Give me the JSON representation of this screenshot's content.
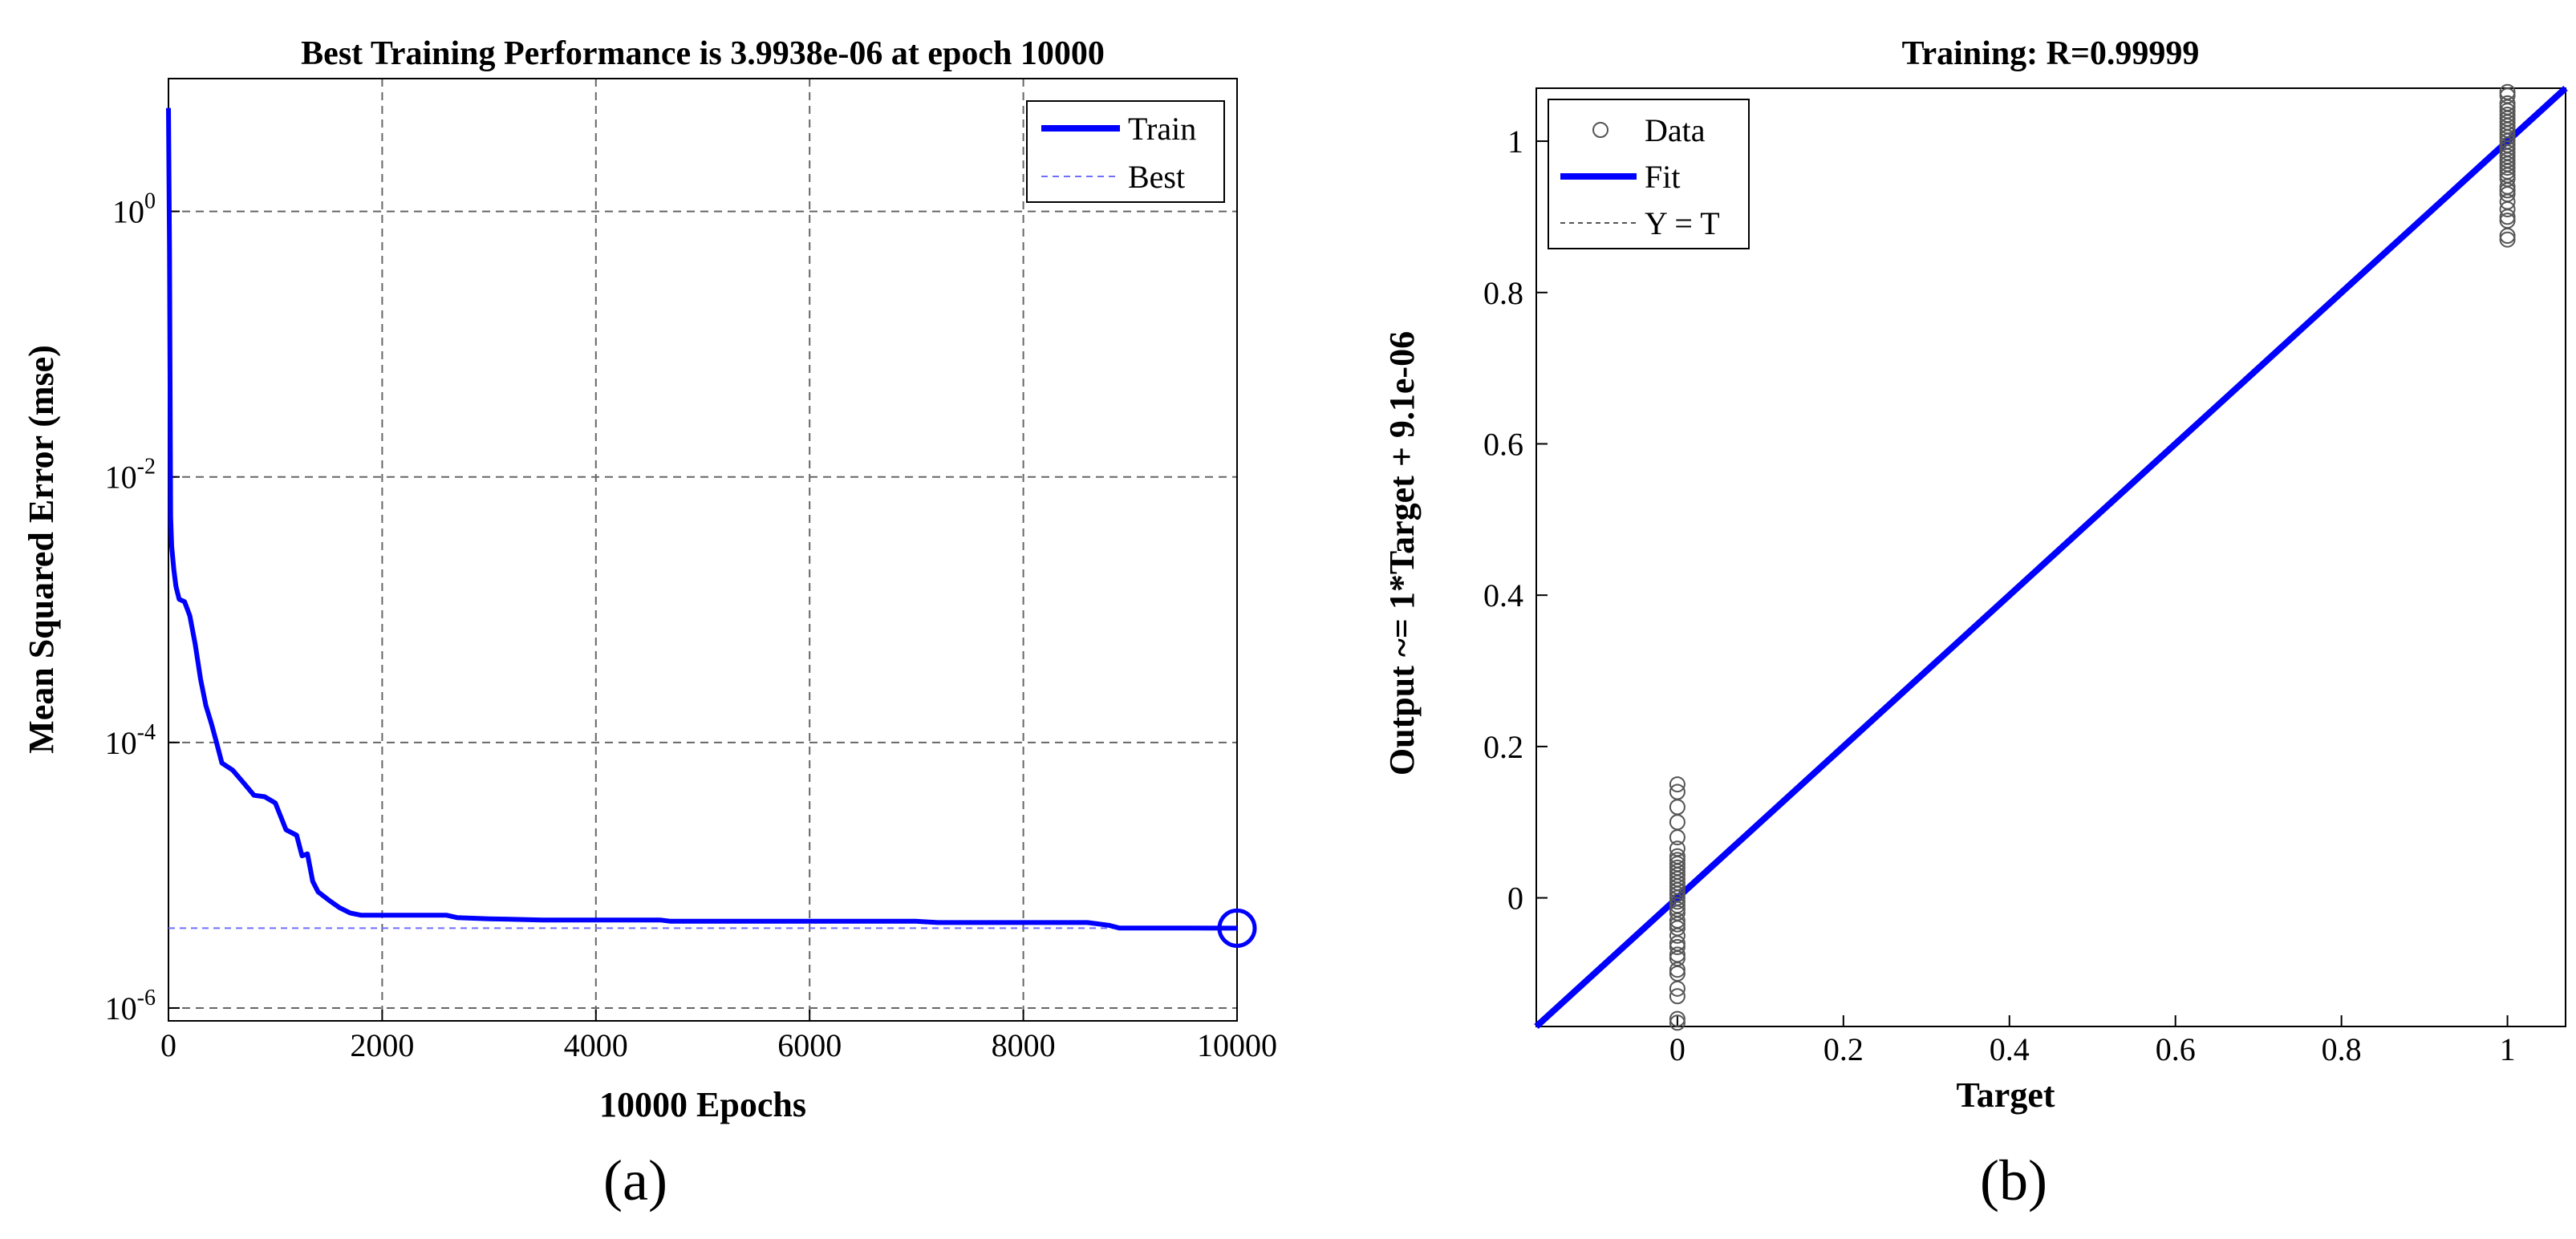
{
  "chart_data": [
    {
      "type": "line",
      "title": "Best Training Performance is 3.9938e-06 at epoch 10000",
      "xlabel": "10000 Epochs",
      "ylabel": "Mean Squared Error  (mse)",
      "xlim": [
        0,
        10000
      ],
      "ylim": [
        8e-07,
        10
      ],
      "yscale": "log",
      "grid": true,
      "legend_placement": "top-right",
      "x_ticks": [
        "0",
        "2000",
        "4000",
        "6000",
        "8000",
        "10000"
      ],
      "y_ticks": [
        {
          "base": "10",
          "exp": "0",
          "value": 1
        },
        {
          "base": "10",
          "exp": "-2",
          "value": 0.01
        },
        {
          "base": "10",
          "exp": "-4",
          "value": 0.0001
        },
        {
          "base": "10",
          "exp": "-6",
          "value": 1e-06
        }
      ],
      "legend": [
        "Train",
        "Best"
      ],
      "colors": {
        "train": "#0000ff",
        "best": "#6f6fff"
      },
      "series": [
        {
          "name": "Train",
          "x": [
            0,
            10,
            20,
            30,
            50,
            70,
            100,
            150,
            200,
            250,
            300,
            350,
            400,
            450,
            500,
            600,
            700,
            800,
            900,
            1000,
            1100,
            1200,
            1250,
            1300,
            1350,
            1400,
            1500,
            1600,
            1700,
            1800,
            2000,
            2600,
            2700,
            3000,
            3500,
            4000,
            4600,
            4700,
            5000,
            6000,
            7000,
            7200,
            8000,
            8600,
            8800,
            8900,
            9200,
            9600,
            10000
          ],
          "y": [
            6.0,
            0.5,
            0.005,
            0.003,
            0.002,
            0.0015,
            0.0012,
            0.00115,
            0.0009,
            0.00055,
            0.0003,
            0.00019,
            0.00014,
            0.0001,
            7e-05,
            6.2e-05,
            5e-05,
            4e-05,
            3.9e-05,
            3.5e-05,
            2.2e-05,
            2e-05,
            1.4e-05,
            1.45e-05,
            9e-06,
            7.5e-06,
            6.5e-06,
            5.7e-06,
            5.2e-06,
            5e-06,
            5e-06,
            5e-06,
            4.8e-06,
            4.7e-06,
            4.6e-06,
            4.6e-06,
            4.6e-06,
            4.5e-06,
            4.5e-06,
            4.5e-06,
            4.5e-06,
            4.4e-06,
            4.4e-06,
            4.4e-06,
            4.2e-06,
            4e-06,
            4e-06,
            4e-06,
            3.9938e-06
          ]
        },
        {
          "name": "Best",
          "x": [
            0,
            10000
          ],
          "y": [
            3.9938e-06,
            3.9938e-06
          ]
        }
      ],
      "best_point": {
        "x": 10000,
        "y": 3.9938e-06
      }
    },
    {
      "type": "scatter",
      "title": "Training: R=0.99999",
      "xlabel": "Target",
      "ylabel": "Output ~= 1*Target + 9.1e-06",
      "xlim": [
        -0.17,
        1.07
      ],
      "ylim": [
        -0.17,
        1.07
      ],
      "grid": false,
      "legend_placement": "top-left",
      "x_ticks": [
        "0",
        "0.2",
        "0.4",
        "0.6",
        "0.8",
        "1"
      ],
      "y_ticks": [
        "0",
        "0.2",
        "0.4",
        "0.6",
        "0.8",
        "1"
      ],
      "legend": [
        "Data",
        "Fit",
        "Y = T"
      ],
      "colors": {
        "data": "#555555",
        "fit": "#0000ff",
        "yt": "#555555"
      },
      "fit": {
        "slope": 1,
        "intercept": 9.1e-06
      },
      "series": [
        {
          "name": "Data",
          "x": [
            0,
            0,
            0,
            0,
            0,
            0,
            0,
            0,
            0,
            0,
            0,
            0,
            0,
            0,
            0,
            0,
            0,
            0,
            0,
            0,
            0,
            0,
            0,
            0,
            0,
            0,
            0,
            0,
            0,
            0,
            0,
            0,
            0,
            0,
            0,
            0,
            1,
            1,
            1,
            1,
            1,
            1,
            1,
            1,
            1,
            1,
            1,
            1,
            1,
            1,
            1,
            1,
            1,
            1,
            1,
            1,
            1,
            1,
            1,
            1,
            1,
            1,
            1,
            1,
            1,
            1,
            1,
            1
          ],
          "y": [
            0.15,
            0.14,
            0.12,
            0.1,
            0.08,
            0.065,
            0.055,
            0.05,
            0.045,
            0.04,
            0.035,
            0.03,
            0.025,
            0.02,
            0.015,
            0.01,
            0.005,
            0.0,
            -0.005,
            -0.01,
            -0.015,
            -0.02,
            -0.03,
            -0.035,
            -0.04,
            -0.05,
            -0.06,
            -0.065,
            -0.075,
            -0.08,
            -0.095,
            -0.1,
            -0.12,
            -0.13,
            -0.16,
            -0.165,
            1.065,
            1.06,
            1.05,
            1.045,
            1.04,
            1.035,
            1.03,
            1.025,
            1.02,
            1.015,
            1.01,
            1.005,
            1.0,
            0.995,
            0.99,
            0.985,
            0.98,
            0.975,
            0.97,
            0.965,
            0.96,
            0.955,
            0.95,
            0.94,
            0.935,
            0.93,
            0.92,
            0.91,
            0.9,
            0.895,
            0.875,
            0.87
          ]
        }
      ]
    }
  ],
  "panel_labels": [
    "(a)",
    "(b)"
  ]
}
